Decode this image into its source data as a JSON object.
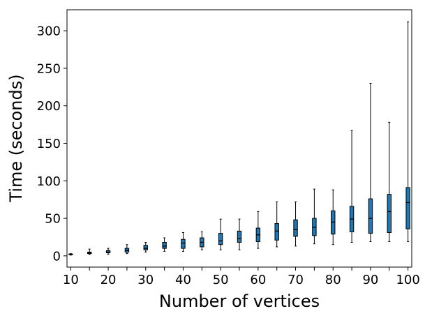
{
  "chart_data": {
    "type": "boxplot",
    "title": "",
    "xlabel": "Number of vertices",
    "ylabel": "Time (seconds)",
    "ylim": [
      -15,
      328
    ],
    "xlim": [
      9,
      101
    ],
    "yticks": [
      0,
      50,
      100,
      150,
      200,
      250,
      300
    ],
    "xtick_labels": [
      "10",
      "20",
      "30",
      "40",
      "50",
      "60",
      "70",
      "80",
      "90",
      "100"
    ],
    "xticks_minor": [
      15,
      25,
      35,
      45,
      55,
      65,
      75,
      85,
      95
    ],
    "box_color": "#1f77b4",
    "boxes": [
      {
        "x": 10,
        "min": 1,
        "q1": 1.5,
        "median": 2,
        "q3": 2.5,
        "max": 3
      },
      {
        "x": 15,
        "min": 2,
        "q1": 3,
        "median": 4,
        "q3": 5,
        "max": 9
      },
      {
        "x": 20,
        "min": 2,
        "q1": 4,
        "median": 5,
        "q3": 7,
        "max": 10
      },
      {
        "x": 25,
        "min": 3,
        "q1": 5,
        "median": 7,
        "q3": 10,
        "max": 15
      },
      {
        "x": 30,
        "min": 5,
        "q1": 8,
        "median": 10,
        "q3": 14,
        "max": 18
      },
      {
        "x": 35,
        "min": 6,
        "q1": 10,
        "median": 13,
        "q3": 18,
        "max": 24
      },
      {
        "x": 40,
        "min": 6,
        "q1": 10,
        "median": 17,
        "q3": 22,
        "max": 31
      },
      {
        "x": 45,
        "min": 8,
        "q1": 12,
        "median": 18,
        "q3": 24,
        "max": 32
      },
      {
        "x": 50,
        "min": 8,
        "q1": 15,
        "median": 20,
        "q3": 30,
        "max": 49
      },
      {
        "x": 55,
        "min": 8,
        "q1": 18,
        "median": 23,
        "q3": 33,
        "max": 49
      },
      {
        "x": 60,
        "min": 10,
        "q1": 19,
        "median": 28,
        "q3": 37,
        "max": 59
      },
      {
        "x": 65,
        "min": 12,
        "q1": 21,
        "median": 33,
        "q3": 43,
        "max": 72
      },
      {
        "x": 70,
        "min": 13,
        "q1": 26,
        "median": 35,
        "q3": 48,
        "max": 72
      },
      {
        "x": 75,
        "min": 16,
        "q1": 27,
        "median": 38,
        "q3": 50,
        "max": 89
      },
      {
        "x": 80,
        "min": 15,
        "q1": 29,
        "median": 45,
        "q3": 60,
        "max": 88
      },
      {
        "x": 85,
        "min": 18,
        "q1": 32,
        "median": 49,
        "q3": 66,
        "max": 167
      },
      {
        "x": 90,
        "min": 19,
        "q1": 30,
        "median": 50,
        "q3": 76,
        "max": 230
      },
      {
        "x": 95,
        "min": 19,
        "q1": 31,
        "median": 59,
        "q3": 82,
        "max": 178
      },
      {
        "x": 100,
        "min": 19,
        "q1": 36,
        "median": 71,
        "q3": 91,
        "max": 312
      }
    ]
  }
}
